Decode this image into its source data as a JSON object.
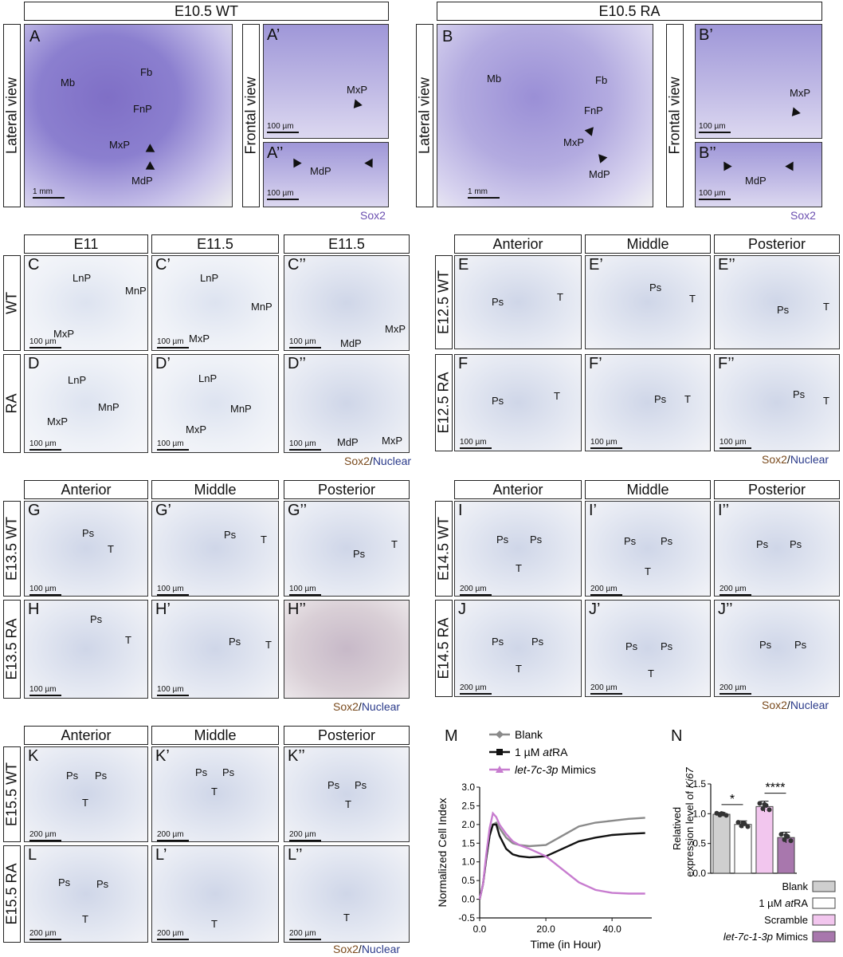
{
  "sectionA": {
    "title_wt": "E10.5 WT",
    "title_ra": "E10.5 RA",
    "lateral_view": "Lateral view",
    "frontal_view": "Frontal view",
    "panel_A": "A",
    "panel_A1": "A’",
    "panel_A2": "A’’",
    "panel_B": "B",
    "panel_B1": "B’",
    "panel_B2": "B’’",
    "labels": {
      "mb": "Mb",
      "fb": "Fb",
      "fnp": "FnP",
      "mxp": "MxP",
      "mdp": "MdP"
    },
    "scale_1mm": "1 mm",
    "scale_100um": "100 µm",
    "stain": "Sox2"
  },
  "sectionC": {
    "col_e11": "E11",
    "col_e115a": "E11.5",
    "col_e115b": "E11.5",
    "row_wt": "WT",
    "row_ra": "RA",
    "panel_C": "C",
    "panel_C1": "C’",
    "panel_C2": "C’’",
    "panel_D": "D",
    "panel_D1": "D’",
    "panel_D2": "D’’",
    "labels": {
      "lnp": "LnP",
      "mnp": "MnP",
      "mxp": "MxP",
      "mdp": "MdP"
    },
    "scale": "100 µm",
    "stain_sox": "Sox2",
    "stain_sep": "/",
    "stain_nuc": "Nuclear"
  },
  "sectionE": {
    "col_ant": "Anterior",
    "col_mid": "Middle",
    "col_post": "Posterior",
    "row_wt": "E12.5 WT",
    "row_ra": "E12.5 RA",
    "panel_E": "E",
    "panel_E1": "E’",
    "panel_E2": "E’’",
    "panel_F": "F",
    "panel_F1": "F’",
    "panel_F2": "F’’",
    "labels": {
      "ps": "Ps",
      "t": "T"
    },
    "scale": "100 µm",
    "stain_sox": "Sox2",
    "stain_sep": "/",
    "stain_nuc": "Nuclear"
  },
  "sectionG": {
    "col_ant": "Anterior",
    "col_mid": "Middle",
    "col_post": "Posterior",
    "row_wt": "E13.5 WT",
    "row_ra": "E13.5 RA",
    "panel_G": "G",
    "panel_G1": "G’",
    "panel_G2": "G’’",
    "panel_H": "H",
    "panel_H1": "H’",
    "panel_H2": "H’’",
    "labels": {
      "ps": "Ps",
      "t": "T"
    },
    "scale": "100 µm",
    "stain_sox": "Sox2",
    "stain_sep": "/",
    "stain_nuc": "Nuclear"
  },
  "sectionI": {
    "col_ant": "Anterior",
    "col_mid": "Middle",
    "col_post": "Posterior",
    "row_wt": "E14.5 WT",
    "row_ra": "E14.5 RA",
    "panel_I": "I",
    "panel_I1": "I’",
    "panel_I2": "I’’",
    "panel_J": "J",
    "panel_J1": "J’",
    "panel_J2": "J’’",
    "labels": {
      "ps": "Ps",
      "t": "T"
    },
    "scale": "200 µm",
    "stain_sox": "Sox2",
    "stain_sep": "/",
    "stain_nuc": "Nuclear"
  },
  "sectionK": {
    "col_ant": "Anterior",
    "col_mid": "Middle",
    "col_post": "Posterior",
    "row_wt": "E15.5 WT",
    "row_ra": "E15.5 RA",
    "panel_K": "K",
    "panel_K1": "K’",
    "panel_K2": "K’’",
    "panel_L": "L",
    "panel_L1": "L’",
    "panel_L2": "L’’",
    "labels": {
      "ps": "Ps",
      "t": "T"
    },
    "scale": "200 µm",
    "stain_sox": "Sox2",
    "stain_sep": "/",
    "stain_nuc": "Nuclear"
  },
  "chartM": {
    "panel": "M",
    "chart_data": {
      "type": "line",
      "title": "",
      "xlabel": "Time (in Hour)",
      "ylabel": "Normalized Cell Index",
      "xlim": [
        0,
        52
      ],
      "ylim": [
        -0.5,
        3.0
      ],
      "xticks": [
        "0.0",
        "20.0",
        "40.0"
      ],
      "yticks": [
        "-0.5",
        "0.0",
        "0.5",
        "1.0",
        "1.5",
        "2.0",
        "2.5",
        "3.0"
      ],
      "series": [
        {
          "name": "Blank",
          "color": "#8a8a8a",
          "x": [
            0,
            1,
            2,
            3,
            4,
            5,
            6,
            8,
            10,
            12,
            15,
            20,
            25,
            30,
            35,
            40,
            45,
            50
          ],
          "y": [
            0,
            0.4,
            1.1,
            1.7,
            2.0,
            2.05,
            1.9,
            1.65,
            1.5,
            1.45,
            1.42,
            1.45,
            1.7,
            1.95,
            2.05,
            2.1,
            2.15,
            2.18
          ]
        },
        {
          "name": "1 µM atRA",
          "color": "#111111",
          "x": [
            0,
            1,
            2,
            3,
            4,
            5,
            6,
            8,
            10,
            12,
            15,
            20,
            25,
            30,
            35,
            40,
            45,
            50
          ],
          "y": [
            0,
            0.4,
            1.1,
            1.7,
            2.0,
            2.0,
            1.7,
            1.35,
            1.2,
            1.15,
            1.12,
            1.15,
            1.35,
            1.55,
            1.65,
            1.72,
            1.75,
            1.77
          ]
        },
        {
          "name": "let-7c-3p Mimics",
          "color": "#c77ccf",
          "x": [
            0,
            1,
            2,
            3,
            4,
            5,
            6,
            8,
            10,
            12,
            15,
            20,
            25,
            30,
            35,
            40,
            45,
            50
          ],
          "y": [
            0,
            0.4,
            1.2,
            1.9,
            2.3,
            2.2,
            2.0,
            1.75,
            1.55,
            1.45,
            1.35,
            1.15,
            0.8,
            0.45,
            0.25,
            0.17,
            0.15,
            0.15
          ]
        }
      ],
      "legend": [
        {
          "plain": "Blank"
        },
        {
          "plain": "1 µM ",
          "ital": "at",
          "plain2": "RA"
        },
        {
          "ital": "let-7c-3p",
          "plain2": " Mimics"
        }
      ]
    }
  },
  "chartN": {
    "panel": "N",
    "chart_data": {
      "type": "bar",
      "ylabel_1": "Relatived",
      "ylabel_2": "expression level of ",
      "ylabel_ital": "Ki67",
      "ylim": [
        0,
        1.5
      ],
      "yticks": [
        "0.0",
        "0.5",
        "1.0",
        "1.5"
      ],
      "categories": [
        "Blank",
        "1 µM atRA",
        "Scramble",
        "let-7c-1-3p Mimics"
      ],
      "values": [
        0.99,
        0.82,
        1.12,
        0.6
      ],
      "errors": [
        0.03,
        0.06,
        0.09,
        0.09
      ],
      "colors": [
        "#cfcfcf",
        "#ffffff",
        "#f2c6ee",
        "#a877ad"
      ],
      "significance": [
        {
          "pair": [
            0,
            1
          ],
          "label": "*"
        },
        {
          "pair": [
            2,
            3
          ],
          "label": "****"
        }
      ],
      "legend": [
        {
          "plain": "Blank"
        },
        {
          "plain": "1 µM ",
          "ital": "at",
          "plain2": "RA"
        },
        {
          "plain": "Scramble"
        },
        {
          "ital": "let-7c-1-3p",
          "plain2": " Mimics"
        }
      ]
    }
  }
}
